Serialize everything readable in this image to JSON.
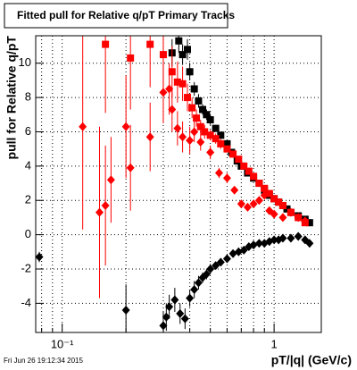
{
  "chart_data": {
    "type": "scatter",
    "title": "Fitted pull for Relative q/pT  Primary Tracks",
    "y_label": "pull for Relative q/pT",
    "x_label": "pT/|q| (GeV/c)",
    "footer": "Fri Jun 26 19:12:34 2015",
    "log_x": true,
    "grid": true,
    "xlim": [
      0.075,
      1.67
    ],
    "ylim": [
      -5.7,
      11.6
    ],
    "xticks": [
      {
        "value": 0.1,
        "label": "10⁻¹"
      },
      1
    ],
    "xminor_ticks": [
      0.08,
      0.09,
      0.2,
      0.3,
      0.4,
      0.5,
      0.6,
      0.7,
      0.8,
      0.9
    ],
    "yticks": [
      -4,
      -2,
      0,
      2,
      4,
      6,
      8,
      10
    ],
    "series": [
      {
        "name": "black squares",
        "marker": "square",
        "color": "#000000",
        "x": [
          0.33,
          0.355,
          0.37,
          0.39,
          0.4,
          0.42,
          0.44,
          0.46,
          0.48,
          0.5,
          0.53,
          0.56,
          0.6,
          0.63,
          0.67,
          0.7,
          0.75,
          0.8,
          0.85,
          0.9,
          0.95,
          1.0,
          1.05,
          1.1,
          1.15,
          1.2,
          1.3,
          1.4,
          1.47
        ],
        "values": [
          10.6,
          11.3,
          10.5,
          10.8,
          9.5,
          8.5,
          7.8,
          7.3,
          7.0,
          6.7,
          6.2,
          5.8,
          5.3,
          4.8,
          4.3,
          4.0,
          3.6,
          3.3,
          3.0,
          2.6,
          2.3,
          2.1,
          1.9,
          1.7,
          1.5,
          1.3,
          1.1,
          0.9,
          0.7
        ],
        "errors": [
          0.8,
          0.7,
          0.6,
          0.6,
          0.5,
          0.4,
          0.4,
          0.3,
          0.3,
          0.3,
          0.2,
          0.2,
          0.2,
          0.2,
          0.2,
          0.2,
          0.1,
          0.1,
          0.1,
          0.1,
          0.1,
          0.1,
          0.1,
          0.1,
          0.1,
          0.1,
          0.1,
          0.1,
          0.1
        ]
      },
      {
        "name": "black diamonds",
        "marker": "diamond",
        "color": "#000000",
        "x": [
          0.078,
          0.2,
          0.3,
          0.31,
          0.32,
          0.34,
          0.36,
          0.38,
          0.4,
          0.42,
          0.44,
          0.46,
          0.48,
          0.5,
          0.53,
          0.56,
          0.6,
          0.64,
          0.68,
          0.72,
          0.76,
          0.8,
          0.85,
          0.9,
          0.95,
          1.0,
          1.05,
          1.1,
          1.2,
          1.3,
          1.4,
          1.47
        ],
        "values": [
          -1.3,
          -4.4,
          -5.3,
          -4.8,
          -4.2,
          -3.8,
          -4.6,
          -4.9,
          -3.7,
          -3.2,
          -2.8,
          -2.5,
          -2.3,
          -2.0,
          -1.8,
          -1.6,
          -1.4,
          -1.1,
          -1.0,
          -0.9,
          -0.7,
          -0.6,
          -0.5,
          -0.5,
          -0.4,
          -0.3,
          -0.3,
          -0.2,
          -0.2,
          -0.1,
          -0.3,
          -0.5
        ],
        "errors": [
          0.3,
          1.5,
          0.8,
          0.8,
          0.7,
          0.7,
          0.6,
          0.6,
          0.5,
          0.5,
          0.4,
          0.3,
          0.3,
          0.3,
          0.2,
          0.2,
          0.2,
          0.2,
          0.1,
          0.1,
          0.1,
          0.1,
          0.1,
          0.1,
          0.1,
          0.1,
          0.1,
          0.1,
          0.1,
          0.1,
          0.1,
          0.1
        ]
      },
      {
        "name": "red squares",
        "marker": "square",
        "color": "#ff0000",
        "x": [
          0.16,
          0.21,
          0.26,
          0.3,
          0.33,
          0.35,
          0.37,
          0.39,
          0.41,
          0.43,
          0.45,
          0.47,
          0.5,
          0.53,
          0.56,
          0.6,
          0.64,
          0.68,
          0.72,
          0.76,
          0.8,
          0.85,
          0.9,
          0.95,
          1.0,
          1.05,
          1.1,
          1.2,
          1.3,
          1.4
        ],
        "values": [
          11.1,
          10.3,
          11.1,
          10.5,
          9.5,
          8.9,
          8.8,
          8.0,
          7.4,
          6.8,
          6.3,
          6.0,
          5.8,
          5.6,
          5.3,
          5.0,
          4.7,
          4.4,
          4.0,
          3.7,
          3.4,
          3.0,
          2.7,
          2.4,
          2.1,
          1.9,
          1.7,
          1.3,
          1.0,
          0.7
        ],
        "errors": [
          4.0,
          3.0,
          2.5,
          2.0,
          1.5,
          1.2,
          1.0,
          0.8,
          0.6,
          0.5,
          0.4,
          0.4,
          0.3,
          0.3,
          0.3,
          0.2,
          0.2,
          0.2,
          0.2,
          0.2,
          0.1,
          0.1,
          0.1,
          0.1,
          0.1,
          0.1,
          0.1,
          0.1,
          0.1,
          0.1
        ]
      },
      {
        "name": "red diamonds",
        "marker": "diamond",
        "color": "#ff0000",
        "x": [
          0.125,
          0.15,
          0.16,
          0.17,
          0.2,
          0.21,
          0.26,
          0.3,
          0.32,
          0.33,
          0.35,
          0.37,
          0.4,
          0.42,
          0.45,
          0.5,
          0.55,
          0.6,
          0.65,
          0.7,
          0.75,
          0.8,
          0.85,
          0.9,
          0.95,
          1.0,
          1.1,
          1.2,
          1.3,
          1.4
        ],
        "values": [
          6.3,
          1.3,
          1.7,
          3.2,
          6.3,
          3.9,
          5.7,
          8.3,
          8.5,
          7.3,
          6.2,
          5.7,
          5.5,
          6.0,
          5.4,
          4.8,
          3.6,
          3.3,
          2.6,
          1.8,
          1.6,
          1.8,
          2.0,
          2.3,
          1.4,
          1.2,
          1.0,
          1.3,
          1.0,
          0.8
        ],
        "errors": [
          6.0,
          5.0,
          3.5,
          2.5,
          3.0,
          2.5,
          2.0,
          1.8,
          1.5,
          1.3,
          1.0,
          0.9,
          0.8,
          0.6,
          0.5,
          0.4,
          0.3,
          0.3,
          0.2,
          0.2,
          0.2,
          0.2,
          0.1,
          0.1,
          0.1,
          0.1,
          0.1,
          0.1,
          0.1,
          0.1
        ]
      }
    ]
  }
}
